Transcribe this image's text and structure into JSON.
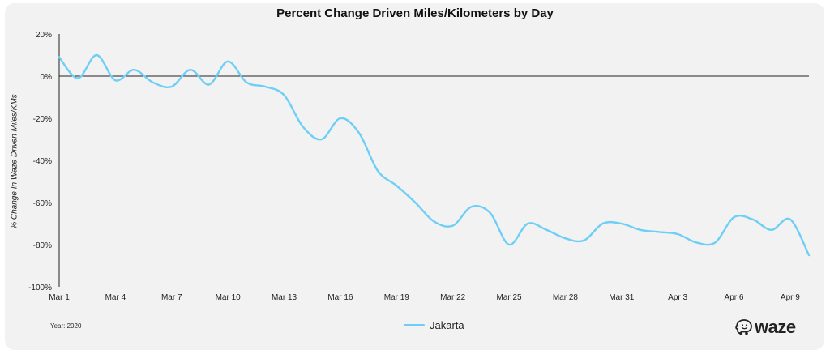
{
  "chart_data": {
    "type": "line",
    "title": "Percent Change Driven Miles/Kilometers by Day",
    "ylabel": "% Change In Waze Driven Miles/KMs",
    "xlabel": "",
    "footnote": "Year: 2020",
    "ylim": [
      -100,
      20
    ],
    "yticks": [
      20,
      0,
      -20,
      -40,
      -60,
      -80,
      -100
    ],
    "ytick_labels": [
      "20%",
      "0%",
      "-20%",
      "-40%",
      "-60%",
      "-80%",
      "-100%"
    ],
    "xtick_labels": [
      "Mar 1",
      "Mar 4",
      "Mar 7",
      "Mar 10",
      "Mar 13",
      "Mar 16",
      "Mar 19",
      "Mar 22",
      "Mar 25",
      "Mar 28",
      "Mar 31",
      "Apr 3",
      "Apr 6",
      "Apr 9"
    ],
    "xtick_every": 3,
    "grid": false,
    "zero_line": true,
    "legend_position": "bottom-center",
    "categories": [
      "Mar 1",
      "Mar 2",
      "Mar 3",
      "Mar 4",
      "Mar 5",
      "Mar 6",
      "Mar 7",
      "Mar 8",
      "Mar 9",
      "Mar 10",
      "Mar 11",
      "Mar 12",
      "Mar 13",
      "Mar 14",
      "Mar 15",
      "Mar 16",
      "Mar 17",
      "Mar 18",
      "Mar 19",
      "Mar 20",
      "Mar 21",
      "Mar 22",
      "Mar 23",
      "Mar 24",
      "Mar 25",
      "Mar 26",
      "Mar 27",
      "Mar 28",
      "Mar 29",
      "Mar 30",
      "Mar 31",
      "Apr 1",
      "Apr 2",
      "Apr 3",
      "Apr 4",
      "Apr 5",
      "Apr 6",
      "Apr 7",
      "Apr 8",
      "Apr 9",
      "Apr 10"
    ],
    "series": [
      {
        "name": "Jakarta",
        "color": "#6ecff6",
        "values": [
          9,
          -1,
          10,
          -2,
          3,
          -3,
          -5,
          3,
          -4,
          7,
          -3,
          -5,
          -9,
          -24,
          -30,
          -20,
          -27,
          -45,
          -52,
          -60,
          -69,
          -71,
          -62,
          -65,
          -80,
          -70,
          -73,
          -77,
          -78,
          -70,
          -70,
          -73,
          -74,
          -75,
          -79,
          -79,
          -67,
          -68,
          -73,
          -68,
          -85
        ]
      }
    ]
  },
  "branding": {
    "logo_text": "waze",
    "logo_icon": "waze-ghost-icon"
  }
}
